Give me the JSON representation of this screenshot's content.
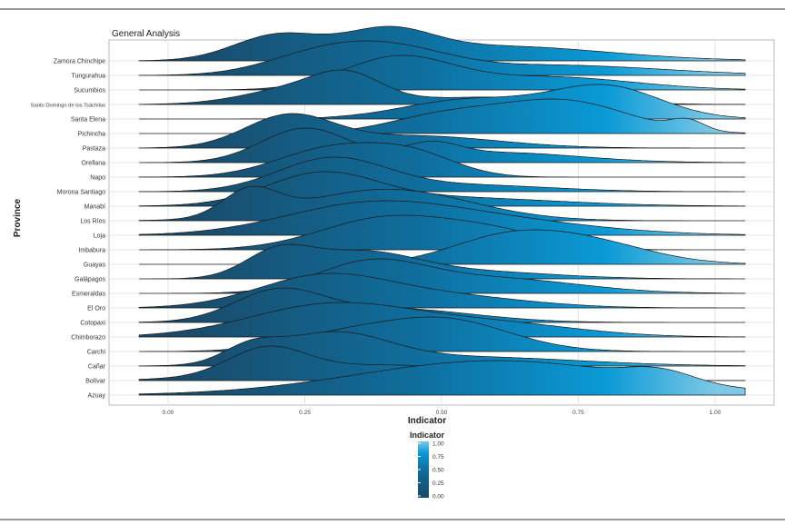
{
  "chart_data": {
    "type": "ridgeline",
    "title": "General Analysis",
    "xlabel": "Indicator",
    "ylabel": "Province",
    "xlim": [
      -0.05,
      1.05
    ],
    "x_ticks": [
      "0.00",
      "0.25",
      "0.50",
      "0.75",
      "1.00"
    ],
    "grid": true,
    "legend": {
      "title": "Indicator",
      "position": "bottom",
      "ticks": [
        "1.00",
        "0.75",
        "0.50",
        "0.25",
        "0.00"
      ],
      "colors": {
        "low": "#1b4866",
        "mid": "#0a8fc8",
        "high": "#7cc8e6"
      }
    },
    "series": [
      {
        "name": "Zamora Chinchipe",
        "peaks": [
          [
            0.2,
            0.08,
            1
          ],
          [
            0.4,
            0.08,
            1
          ],
          [
            0.6,
            0.2,
            0.6
          ]
        ]
      },
      {
        "name": "Tungurahua",
        "peaks": [
          [
            0.28,
            0.1,
            1
          ],
          [
            0.42,
            0.1,
            1
          ],
          [
            0.7,
            0.2,
            0.5
          ]
        ]
      },
      {
        "name": "Sucumbios",
        "peaks": [
          [
            0.42,
            0.1,
            1
          ],
          [
            0.7,
            0.15,
            0.4
          ]
        ]
      },
      {
        "name": "Santo Domingo de los Tsáchilas",
        "peaks": [
          [
            0.25,
            0.1,
            0.7
          ],
          [
            0.33,
            0.06,
            0.8
          ],
          [
            0.6,
            0.15,
            0.3
          ]
        ]
      },
      {
        "name": "Santa Elena",
        "peaks": [
          [
            0.55,
            0.12,
            0.6
          ],
          [
            0.8,
            0.1,
            1
          ]
        ]
      },
      {
        "name": "Pichincha",
        "peaks": [
          [
            0.5,
            0.1,
            0.5
          ],
          [
            0.72,
            0.12,
            1
          ],
          [
            0.95,
            0.03,
            0.3
          ]
        ]
      },
      {
        "name": "Pastaza",
        "peaks": [
          [
            0.22,
            0.08,
            1
          ],
          [
            0.45,
            0.15,
            0.4
          ]
        ]
      },
      {
        "name": "Orellana",
        "peaks": [
          [
            0.25,
            0.08,
            1
          ],
          [
            0.48,
            0.05,
            0.4
          ],
          [
            0.6,
            0.15,
            0.3
          ]
        ]
      },
      {
        "name": "Napo",
        "peaks": [
          [
            0.3,
            0.1,
            1
          ],
          [
            0.45,
            0.08,
            0.7
          ]
        ]
      },
      {
        "name": "Morona Santiago",
        "peaks": [
          [
            0.3,
            0.1,
            1
          ],
          [
            0.55,
            0.15,
            0.2
          ]
        ]
      },
      {
        "name": "Manabí",
        "peaks": [
          [
            0.28,
            0.1,
            1
          ],
          [
            0.5,
            0.2,
            0.3
          ]
        ]
      },
      {
        "name": "Los Ríos",
        "peaks": [
          [
            0.15,
            0.05,
            0.5
          ],
          [
            0.4,
            0.15,
            0.6
          ]
        ]
      },
      {
        "name": "Loja",
        "peaks": [
          [
            0.35,
            0.15,
            0.8
          ],
          [
            0.55,
            0.2,
            0.6
          ]
        ]
      },
      {
        "name": "Imbabura",
        "peaks": [
          [
            0.4,
            0.12,
            1
          ],
          [
            0.6,
            0.1,
            0.5
          ]
        ]
      },
      {
        "name": "Guayas",
        "peaks": [
          [
            0.6,
            0.1,
            0.8
          ],
          [
            0.75,
            0.12,
            1
          ]
        ]
      },
      {
        "name": "Galápagos",
        "peaks": [
          [
            0.2,
            0.06,
            1
          ],
          [
            0.35,
            0.1,
            1
          ],
          [
            0.55,
            0.15,
            0.3
          ]
        ]
      },
      {
        "name": "Esmeraldas",
        "peaks": [
          [
            0.37,
            0.1,
            1
          ],
          [
            0.6,
            0.15,
            0.5
          ]
        ]
      },
      {
        "name": "El Oro",
        "peaks": [
          [
            0.28,
            0.12,
            1
          ],
          [
            0.5,
            0.15,
            0.4
          ]
        ]
      },
      {
        "name": "Cotopaxi",
        "peaks": [
          [
            0.2,
            0.08,
            1
          ],
          [
            0.4,
            0.15,
            0.5
          ]
        ]
      },
      {
        "name": "Chimborazo",
        "peaks": [
          [
            0.3,
            0.15,
            1
          ],
          [
            0.6,
            0.15,
            0.4
          ]
        ]
      },
      {
        "name": "Carchi",
        "peaks": [
          [
            0.5,
            0.12,
            1
          ],
          [
            0.3,
            0.1,
            0.4
          ]
        ]
      },
      {
        "name": "Cañar",
        "peaks": [
          [
            0.15,
            0.05,
            0.5
          ],
          [
            0.3,
            0.1,
            1
          ],
          [
            0.55,
            0.2,
            0.3
          ]
        ]
      },
      {
        "name": "Bolívar",
        "peaks": [
          [
            0.18,
            0.07,
            1
          ],
          [
            0.4,
            0.2,
            0.6
          ]
        ]
      },
      {
        "name": "Azuay",
        "peaks": [
          [
            0.6,
            0.25,
            1
          ],
          [
            0.9,
            0.06,
            0.3
          ]
        ]
      }
    ]
  }
}
